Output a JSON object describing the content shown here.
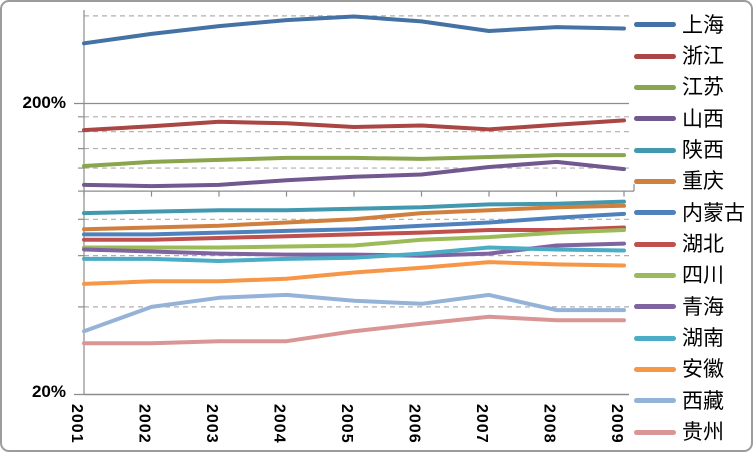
{
  "chart_data": {
    "type": "line",
    "title": "",
    "x_categories": [
      "2001",
      "2002",
      "2003",
      "2004",
      "2005",
      "2006",
      "2007",
      "2008",
      "2009"
    ],
    "y_axis": {
      "scale": "log",
      "unit": "percent",
      "top_label": "200%",
      "bottom_label": "20%",
      "min_percent": 20,
      "solid_line_percent": [
        200,
        100,
        20
      ],
      "dashed_gridlines_percent": [
        400,
        180,
        160,
        140,
        120,
        80,
        60,
        40
      ],
      "major_tick_percent": [
        200,
        20
      ],
      "minor_tick_percent": [
        180,
        160,
        140,
        120,
        100,
        80,
        60,
        40
      ]
    },
    "legend_position": "right",
    "series": [
      {
        "name": "上海",
        "color": "#4472A4",
        "values": [
          322,
          347,
          369,
          387,
          398,
          383,
          355,
          366,
          362
        ]
      },
      {
        "name": "浙江",
        "color": "#AA4643",
        "values": [
          162,
          167,
          173,
          171,
          166,
          168,
          163,
          169,
          175
        ]
      },
      {
        "name": "江苏",
        "color": "#89A54E",
        "values": [
          122,
          126,
          128,
          130,
          130,
          129,
          131,
          133,
          133
        ]
      },
      {
        "name": "山西",
        "color": "#71588F",
        "values": [
          105,
          104,
          105,
          109,
          112,
          114,
          121,
          126,
          119
        ]
      },
      {
        "name": "陕西",
        "color": "#4198AF",
        "values": [
          84,
          85,
          86,
          86,
          87,
          88,
          90,
          90.5,
          92
        ]
      },
      {
        "name": "重庆",
        "color": "#D0803C",
        "values": [
          74,
          75,
          76,
          78,
          80,
          84,
          86,
          88,
          89
        ]
      },
      {
        "name": "内蒙古",
        "color": "#4F81BD",
        "values": [
          71,
          71,
          72,
          73,
          74,
          76,
          78,
          81,
          83.5
        ]
      },
      {
        "name": "湖北",
        "color": "#C0504D",
        "values": [
          68,
          68,
          69,
          70,
          71,
          72,
          73.5,
          73.5,
          75
        ]
      },
      {
        "name": "四川",
        "color": "#9BBB59",
        "values": [
          64,
          64,
          64,
          64.5,
          65,
          68,
          69.5,
          72,
          73.5
        ]
      },
      {
        "name": "青海",
        "color": "#8064A2",
        "values": [
          63,
          62,
          61,
          60.5,
          60.5,
          60,
          61,
          65,
          66
        ]
      },
      {
        "name": "湖南",
        "color": "#4BACC6",
        "values": [
          58.5,
          58.5,
          57.5,
          58.5,
          59,
          61,
          64,
          63,
          62.5
        ]
      },
      {
        "name": "安徽",
        "color": "#F79646",
        "values": [
          48,
          49,
          49,
          50,
          52.5,
          54.5,
          57,
          56,
          55.5
        ]
      },
      {
        "name": "西藏",
        "color": "#95B3D7",
        "values": [
          33,
          40,
          43,
          44,
          42,
          41,
          44,
          39,
          39
        ]
      },
      {
        "name": "贵州",
        "color": "#D99694",
        "values": [
          30,
          30,
          30.5,
          30.5,
          33,
          35,
          37,
          36,
          36
        ]
      }
    ]
  },
  "colors": {
    "axis_line": "#8C8C8C",
    "gridline_dashed": "#AFAFAF",
    "tick": "#8C8C8C",
    "text": "#000000",
    "outer_border": "#9C9C9C",
    "background": "#FFFFFF"
  }
}
